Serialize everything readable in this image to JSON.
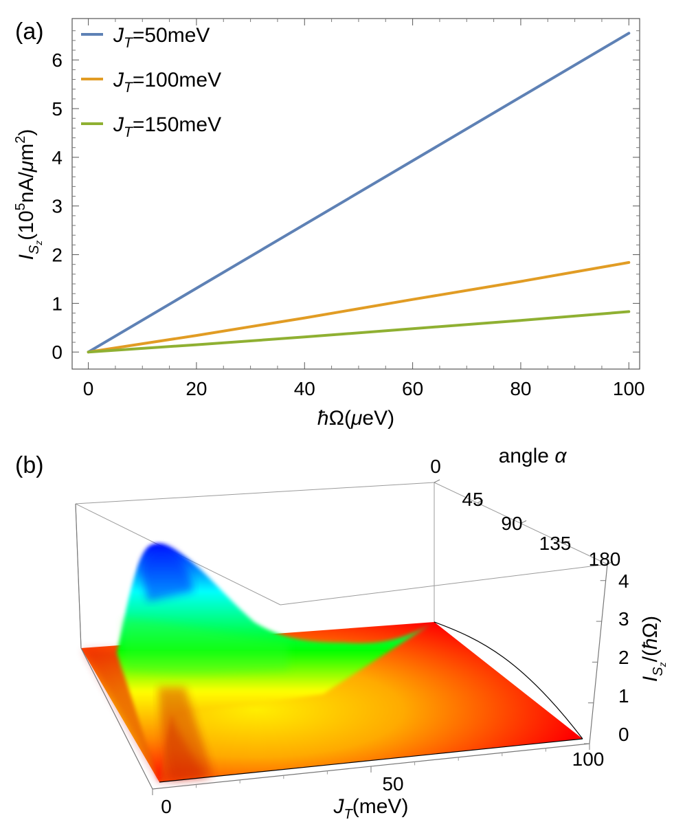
{
  "chart_data": [
    {
      "panel": "(a)",
      "type": "line",
      "xlabel": "ħΩ(μeV)",
      "ylabel": "I_Sz(10^5nA/μm^2)",
      "xlim": [
        -3,
        102
      ],
      "ylim": [
        -0.35,
        6.85
      ],
      "x_ticks": [
        0,
        20,
        40,
        60,
        80,
        100
      ],
      "y_ticks": [
        0,
        1,
        2,
        3,
        4,
        5,
        6
      ],
      "grid": false,
      "legend_position": "top-left",
      "series": [
        {
          "name": "J_T=50meV",
          "name_parts": [
            "J",
            "T",
            "=50meV"
          ],
          "color": "#5e81b5",
          "x": [
            0,
            100
          ],
          "y": [
            0,
            6.55
          ]
        },
        {
          "name": "J_T=100meV",
          "name_parts": [
            "J",
            "T",
            "=100meV"
          ],
          "color": "#e19c24",
          "x": [
            0,
            20,
            40,
            60,
            80,
            100
          ],
          "y": [
            0,
            0.34,
            0.7,
            1.08,
            1.45,
            1.84
          ]
        },
        {
          "name": "J_T=150meV",
          "name_parts": [
            "J",
            "T",
            "=150meV"
          ],
          "color": "#8fb032",
          "x": [
            0,
            20,
            40,
            60,
            80,
            100
          ],
          "y": [
            0,
            0.15,
            0.31,
            0.48,
            0.65,
            0.83
          ]
        }
      ]
    },
    {
      "panel": "(b)",
      "type": "surface3d",
      "xlabel": "J_T(meV)",
      "ylabel": "angle α",
      "zlabel": "I_Sz/(ħΩ)",
      "x_ticks": [
        0,
        50,
        100
      ],
      "y_ticks": [
        0,
        45,
        90,
        135,
        180
      ],
      "z_ticks": [
        0,
        1,
        2,
        3,
        4
      ],
      "xlim": [
        0,
        100
      ],
      "ylim": [
        0,
        180
      ],
      "zlim": [
        0,
        4.4
      ],
      "colormap": [
        "#ff0000",
        "#ffff00",
        "#00ff00",
        "#00ffff",
        "#0000ff"
      ],
      "peak": {
        "J_T": 10,
        "angle": 90,
        "value": 4.2
      }
    }
  ]
}
